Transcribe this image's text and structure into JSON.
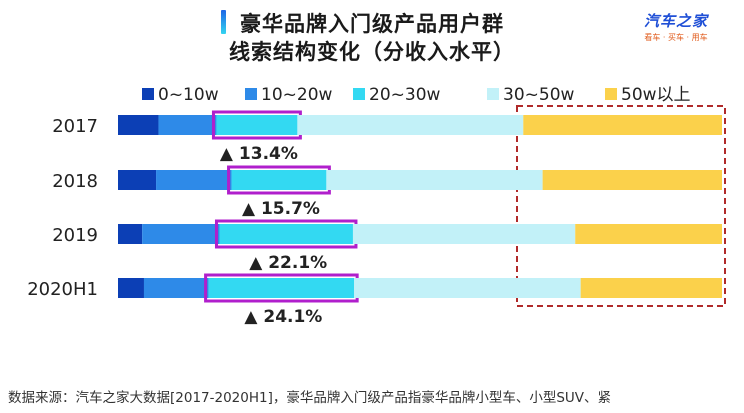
{
  "header": {
    "title_line1": "豪华品牌入门级产品用户群",
    "title_line2": "线索结构变化（分收入水平）"
  },
  "logo": {
    "name": "汽车之家",
    "tagline": "看车 · 买车 · 用车"
  },
  "footnote": "数据来源：汽车之家大数据[2017-2020H1]，豪华品牌入门级产品指豪华品牌小型车、小型SUV、紧",
  "colors": {
    "0~10w": "#0c3fb5",
    "10~20w": "#2e8ae8",
    "20~30w": "#33d9f2",
    "30~50w": "#c2f1f8",
    "50w以上": "#fbd14b",
    "highlight_border": "#b01fcc",
    "dashed_box": "#b02a2a"
  },
  "chart_data": {
    "type": "bar",
    "orientation": "horizontal",
    "stacked": "percent",
    "categories": [
      "2017",
      "2018",
      "2019",
      "2020H1"
    ],
    "series": [
      {
        "name": "0~10w",
        "values": [
          6.7,
          6.3,
          4.0,
          4.3
        ]
      },
      {
        "name": "10~20w",
        "values": [
          9.6,
          12.5,
          12.8,
          10.7
        ]
      },
      {
        "name": "20~30w",
        "values": [
          13.4,
          15.7,
          22.1,
          24.1
        ]
      },
      {
        "name": "30~50w",
        "values": [
          37.4,
          35.8,
          36.8,
          37.5
        ]
      },
      {
        "name": "50w以上",
        "values": [
          32.9,
          29.7,
          24.3,
          23.4
        ]
      }
    ],
    "annotations": [
      "▲ 13.4%",
      "▲ 15.7%",
      "▲ 22.1%",
      "▲ 24.1%"
    ],
    "highlight_series": "20~30w",
    "legend_position": "top",
    "xlim": [
      0,
      100
    ]
  }
}
